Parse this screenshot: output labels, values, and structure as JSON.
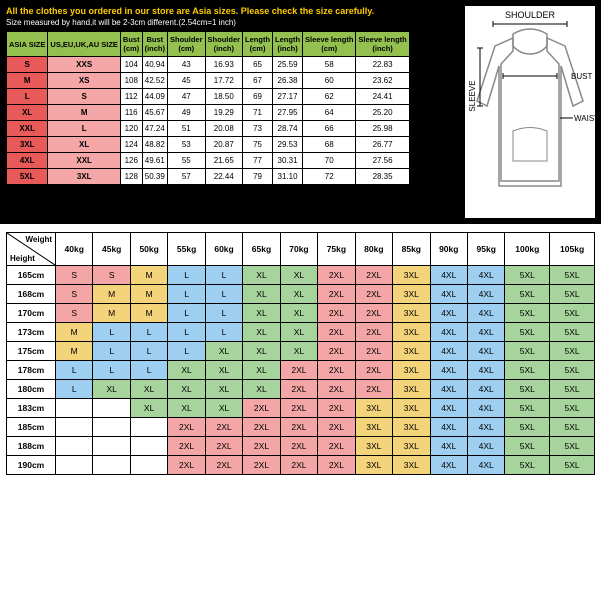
{
  "warnings": {
    "line1": "All the clothes you ordered in our store are Asia sizes. Please check the size carefully.",
    "line2": "Size measured by hand,it will be 2-3cm different.(2.54cm=1 inch)"
  },
  "size_headers": [
    "ASIA SIZE",
    "US,EU,UK,AU SIZE",
    "Bust (cm)",
    "Bust (inch)",
    "Shoulder (cm)",
    "Shoulder (inch)",
    "Length (cm)",
    "Length (inch)",
    "Sleeve length (cm)",
    "Sleeve length (inch)"
  ],
  "size_rows": [
    {
      "asia": "S",
      "us": "XXS",
      "d": [
        "104",
        "40.94",
        "43",
        "16.93",
        "65",
        "25.59",
        "58",
        "22.83"
      ]
    },
    {
      "asia": "M",
      "us": "XS",
      "d": [
        "108",
        "42.52",
        "45",
        "17.72",
        "67",
        "26.38",
        "60",
        "23.62"
      ]
    },
    {
      "asia": "L",
      "us": "S",
      "d": [
        "112",
        "44.09",
        "47",
        "18.50",
        "69",
        "27.17",
        "62",
        "24.41"
      ]
    },
    {
      "asia": "XL",
      "us": "M",
      "d": [
        "116",
        "45.67",
        "49",
        "19.29",
        "71",
        "27.95",
        "64",
        "25.20"
      ]
    },
    {
      "asia": "XXL",
      "us": "L",
      "d": [
        "120",
        "47.24",
        "51",
        "20.08",
        "73",
        "28.74",
        "66",
        "25.98"
      ]
    },
    {
      "asia": "3XL",
      "us": "XL",
      "d": [
        "124",
        "48.82",
        "53",
        "20.87",
        "75",
        "29.53",
        "68",
        "26.77"
      ]
    },
    {
      "asia": "4XL",
      "us": "XXL",
      "d": [
        "126",
        "49.61",
        "55",
        "21.65",
        "77",
        "30.31",
        "70",
        "27.56"
      ]
    },
    {
      "asia": "5XL",
      "us": "3XL",
      "d": [
        "128",
        "50.39",
        "57",
        "22.44",
        "79",
        "31.10",
        "72",
        "28.35"
      ]
    }
  ],
  "diagram_labels": {
    "shoulder": "SHOULDER",
    "bust": "BUST",
    "sleeve": "SLEEVE",
    "waist": "WAIST"
  },
  "weights": [
    "40kg",
    "45kg",
    "50kg",
    "55kg",
    "60kg",
    "65kg",
    "70kg",
    "75kg",
    "80kg",
    "85kg",
    "90kg",
    "95kg",
    "100kg",
    "105kg"
  ],
  "heights": [
    "165cm",
    "168cm",
    "170cm",
    "173cm",
    "175cm",
    "178cm",
    "180cm",
    "183cm",
    "185cm",
    "188cm",
    "190cm"
  ],
  "corner": {
    "weight": "Weight",
    "height": "Height"
  },
  "colors": {
    "S": "#f4a6a6",
    "M": "#f4d47a",
    "L": "#9fcff0",
    "XL": "#a6d49c",
    "2XL": "#f4a6a6",
    "3XL": "#f4d47a",
    "4XL": "#9fcff0",
    "5XL": "#a6d49c"
  },
  "hw_grid": [
    [
      "S",
      "S",
      "M",
      "L",
      "L",
      "XL",
      "XL",
      "2XL",
      "2XL",
      "3XL",
      "4XL",
      "4XL",
      "5XL",
      "5XL"
    ],
    [
      "S",
      "M",
      "M",
      "L",
      "L",
      "XL",
      "XL",
      "2XL",
      "2XL",
      "3XL",
      "4XL",
      "4XL",
      "5XL",
      "5XL"
    ],
    [
      "S",
      "M",
      "M",
      "L",
      "L",
      "XL",
      "XL",
      "2XL",
      "2XL",
      "3XL",
      "4XL",
      "4XL",
      "5XL",
      "5XL"
    ],
    [
      "M",
      "L",
      "L",
      "L",
      "L",
      "XL",
      "XL",
      "2XL",
      "2XL",
      "3XL",
      "4XL",
      "4XL",
      "5XL",
      "5XL"
    ],
    [
      "M",
      "L",
      "L",
      "L",
      "XL",
      "XL",
      "XL",
      "2XL",
      "2XL",
      "3XL",
      "4XL",
      "4XL",
      "5XL",
      "5XL"
    ],
    [
      "L",
      "L",
      "L",
      "XL",
      "XL",
      "XL",
      "2XL",
      "2XL",
      "2XL",
      "3XL",
      "4XL",
      "4XL",
      "5XL",
      "5XL"
    ],
    [
      "L",
      "XL",
      "XL",
      "XL",
      "XL",
      "XL",
      "2XL",
      "2XL",
      "2XL",
      "3XL",
      "4XL",
      "4XL",
      "5XL",
      "5XL"
    ],
    [
      "",
      "",
      "XL",
      "XL",
      "XL",
      "2XL",
      "2XL",
      "2XL",
      "3XL",
      "3XL",
      "4XL",
      "4XL",
      "5XL",
      "5XL"
    ],
    [
      "",
      "",
      "",
      "2XL",
      "2XL",
      "2XL",
      "2XL",
      "2XL",
      "3XL",
      "3XL",
      "4XL",
      "4XL",
      "5XL",
      "5XL"
    ],
    [
      "",
      "",
      "",
      "2XL",
      "2XL",
      "2XL",
      "2XL",
      "2XL",
      "3XL",
      "3XL",
      "4XL",
      "4XL",
      "5XL",
      "5XL"
    ],
    [
      "",
      "",
      "",
      "2XL",
      "2XL",
      "2XL",
      "2XL",
      "2XL",
      "3XL",
      "3XL",
      "4XL",
      "4XL",
      "5XL",
      "5XL"
    ]
  ]
}
